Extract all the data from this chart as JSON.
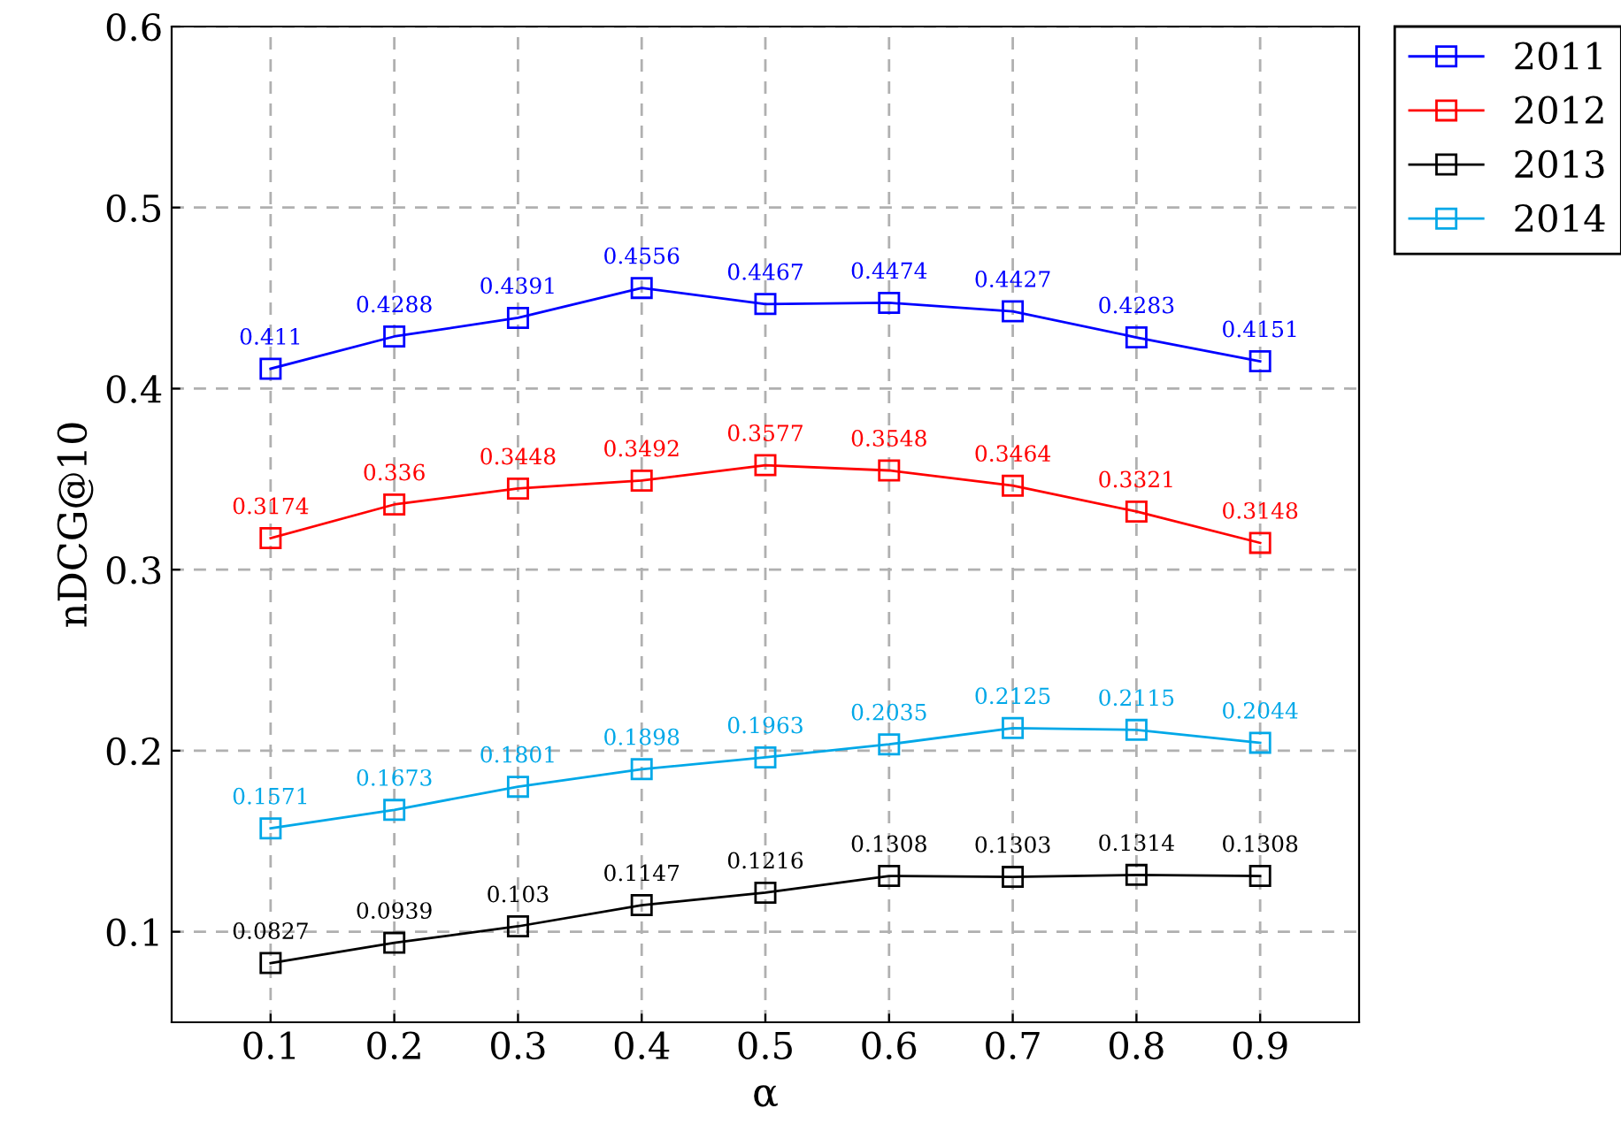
{
  "chart_data": {
    "type": "line",
    "xlabel": "α",
    "ylabel": "nDCG@10",
    "x": [
      0.1,
      0.2,
      0.3,
      0.4,
      0.5,
      0.6,
      0.7,
      0.8,
      0.9
    ],
    "series": [
      {
        "name": "2011",
        "color": "#0000ff",
        "values": [
          0.411,
          0.4288,
          0.4391,
          0.4556,
          0.4467,
          0.4474,
          0.4427,
          0.4283,
          0.4151
        ]
      },
      {
        "name": "2012",
        "color": "#ff0000",
        "values": [
          0.3174,
          0.336,
          0.3448,
          0.3492,
          0.3577,
          0.3548,
          0.3464,
          0.3321,
          0.3148
        ]
      },
      {
        "name": "2013",
        "color": "#000000",
        "values": [
          0.0827,
          0.0939,
          0.103,
          0.1147,
          0.1216,
          0.1308,
          0.1303,
          0.1314,
          0.1308
        ]
      },
      {
        "name": "2014",
        "color": "#00a8e8",
        "values": [
          0.1571,
          0.1673,
          0.1801,
          0.1898,
          0.1963,
          0.2035,
          0.2125,
          0.2115,
          0.2044
        ]
      }
    ],
    "xlim": [
      0.02,
      0.98
    ],
    "ylim": [
      0.05,
      0.6
    ],
    "xticks": [
      0.1,
      0.2,
      0.3,
      0.4,
      0.5,
      0.6,
      0.7,
      0.8,
      0.9
    ],
    "yticks": [
      0.1,
      0.2,
      0.3,
      0.4,
      0.5,
      0.6
    ],
    "grid": true,
    "legend": "top right",
    "marker": "square",
    "line_style": "solid",
    "data_labels": true
  }
}
